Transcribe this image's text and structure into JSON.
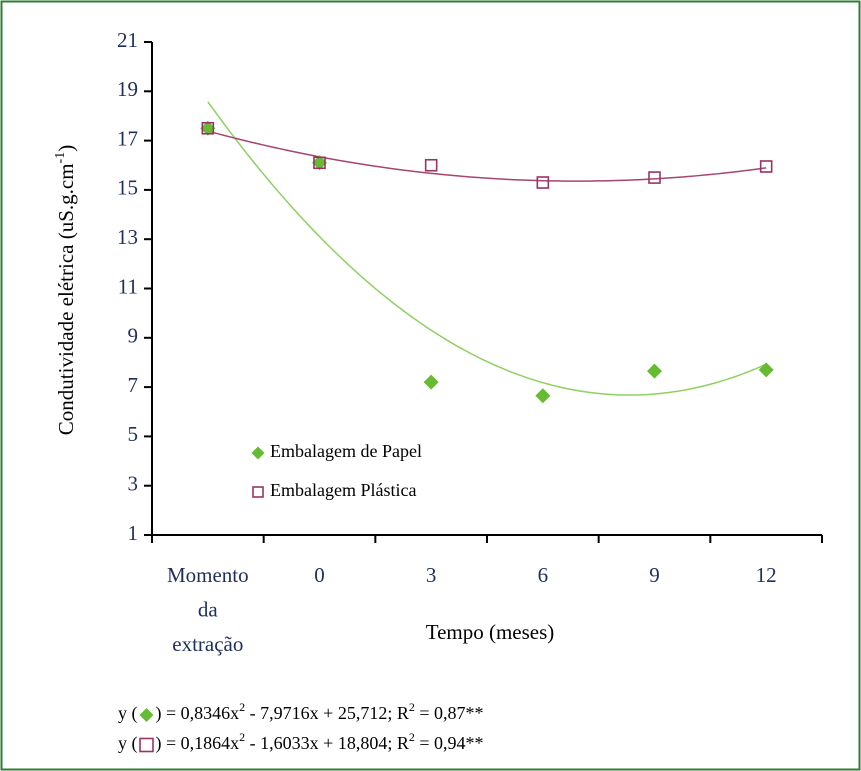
{
  "chart_data": {
    "type": "scatter",
    "x_label": "Tempo (meses)",
    "y_label": {
      "text": "Condutividade elétrica (uS.g.cm",
      "sup": "-1",
      "close": ")"
    },
    "categories": [
      "Momento da extração",
      "0",
      "3",
      "6",
      "9",
      "12"
    ],
    "series": [
      {
        "name": "Embalagem de Papel",
        "color": "#66bb33",
        "trend_color": "#8fd061",
        "marker": "diamond",
        "values": [
          17.5,
          16.1,
          7.2,
          6.65,
          7.65,
          7.7
        ]
      },
      {
        "name": "Embalagem Plástica",
        "color": "#993366",
        "trend_color": "#a64570",
        "marker": "square",
        "values": [
          17.5,
          16.1,
          16.0,
          15.3,
          15.5,
          15.95
        ]
      }
    ],
    "ylim": [
      1,
      21
    ],
    "yticks": [
      1,
      3,
      5,
      7,
      9,
      11,
      13,
      15,
      17,
      19,
      21
    ],
    "equations": [
      {
        "lead": "y (",
        "eq": ") = ",
        "a": {
          "value": 0.8346,
          "label": "0,8346"
        },
        "x2": "x",
        "sup": "2",
        "minus": " - ",
        "b": {
          "value": -7.9716,
          "label": "7,9716"
        },
        "x1plus": "x + ",
        "c": {
          "value": 25.712,
          "label": "25,712"
        },
        "r": "; R",
        "r_eq": " = ",
        "r2": {
          "value": 0.87,
          "label": "0,87"
        },
        "sig": "**"
      },
      {
        "lead": "y (",
        "eq": ") = ",
        "a": {
          "value": 0.1864,
          "label": "0,1864"
        },
        "x2": "x",
        "sup": "2",
        "minus": " - ",
        "b": {
          "value": -1.6033,
          "label": "1,6033"
        },
        "x1plus": "x + ",
        "c": {
          "value": 18.804,
          "label": "18,804"
        },
        "r": "; R",
        "r_eq": " = ",
        "r2": {
          "value": 0.94,
          "label": "0,94"
        },
        "sig": "**"
      }
    ]
  }
}
